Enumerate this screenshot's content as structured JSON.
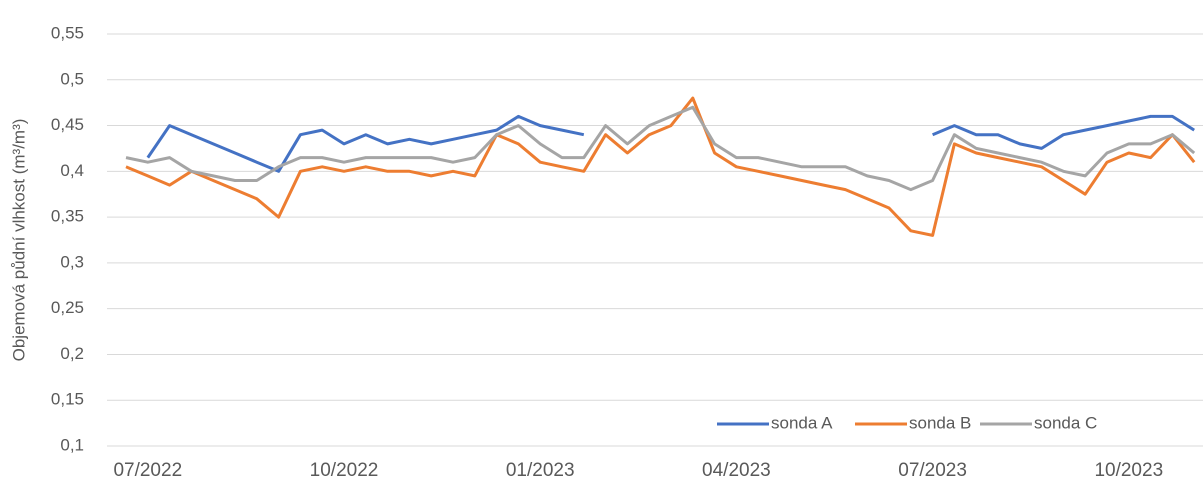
{
  "chart_data": {
    "type": "line",
    "y_label": "Objemová půdní vlhkost (m³/m³)",
    "categories": [
      null,
      "07/2022",
      null,
      null,
      null,
      null,
      null,
      null,
      null,
      null,
      "10/2022",
      null,
      null,
      null,
      null,
      null,
      null,
      null,
      null,
      "01/2023",
      null,
      null,
      null,
      null,
      null,
      null,
      null,
      null,
      "04/2023",
      null,
      null,
      null,
      null,
      null,
      null,
      null,
      null,
      "07/2023",
      null,
      null,
      null,
      null,
      null,
      null,
      null,
      null,
      "10/2023",
      null,
      null,
      null
    ],
    "series": [
      {
        "name": "sonda A",
        "color": "#4472c4",
        "values": [
          null,
          0.415,
          0.45,
          0.44,
          0.43,
          0.42,
          0.41,
          0.4,
          0.44,
          0.445,
          0.43,
          0.44,
          0.43,
          0.435,
          0.43,
          0.435,
          0.44,
          0.445,
          0.46,
          0.45,
          0.445,
          0.44,
          null,
          null,
          null,
          null,
          null,
          null,
          null,
          null,
          null,
          null,
          null,
          null,
          null,
          null,
          null,
          0.44,
          0.45,
          0.44,
          0.44,
          0.43,
          0.425,
          0.44,
          0.445,
          0.45,
          0.455,
          0.46,
          0.46,
          0.445
        ]
      },
      {
        "name": "sonda B",
        "color": "#ed7d31",
        "values": [
          0.405,
          0.395,
          0.385,
          0.4,
          0.39,
          0.38,
          0.37,
          0.35,
          0.4,
          0.405,
          0.4,
          0.405,
          0.4,
          0.4,
          0.395,
          0.4,
          0.395,
          0.44,
          0.43,
          0.41,
          0.405,
          0.4,
          0.44,
          0.42,
          0.44,
          0.45,
          0.48,
          0.42,
          0.405,
          0.4,
          0.395,
          0.39,
          0.385,
          0.38,
          0.37,
          0.36,
          0.335,
          0.33,
          0.43,
          0.42,
          0.415,
          0.41,
          0.405,
          0.39,
          0.375,
          0.41,
          0.42,
          0.415,
          0.44,
          0.41
        ]
      },
      {
        "name": "sonda C",
        "color": "#a5a5a5",
        "values": [
          0.415,
          0.41,
          0.415,
          0.4,
          0.395,
          0.39,
          0.39,
          0.405,
          0.415,
          0.415,
          0.41,
          0.415,
          0.415,
          0.415,
          0.415,
          0.41,
          0.415,
          0.44,
          0.45,
          0.43,
          0.415,
          0.415,
          0.45,
          0.43,
          0.45,
          0.46,
          0.47,
          0.43,
          0.415,
          0.415,
          0.41,
          0.405,
          0.405,
          0.405,
          0.395,
          0.39,
          0.38,
          0.39,
          0.44,
          0.425,
          0.42,
          0.415,
          0.41,
          0.4,
          0.395,
          0.42,
          0.43,
          0.43,
          0.44,
          0.42
        ]
      }
    ],
    "ylim": [
      0.1,
      0.55
    ],
    "yticks": [
      {
        "value": 0.1,
        "label": "0,1"
      },
      {
        "value": 0.15,
        "label": "0,15"
      },
      {
        "value": 0.2,
        "label": "0,2"
      },
      {
        "value": 0.25,
        "label": "0,25"
      },
      {
        "value": 0.3,
        "label": "0,3"
      },
      {
        "value": 0.35,
        "label": "0,35"
      },
      {
        "value": 0.4,
        "label": "0,4"
      },
      {
        "value": 0.45,
        "label": "0,45"
      },
      {
        "value": 0.5,
        "label": "0,5"
      },
      {
        "value": 0.55,
        "label": "0,55"
      }
    ],
    "grid": true,
    "legend": "bottom-right"
  }
}
